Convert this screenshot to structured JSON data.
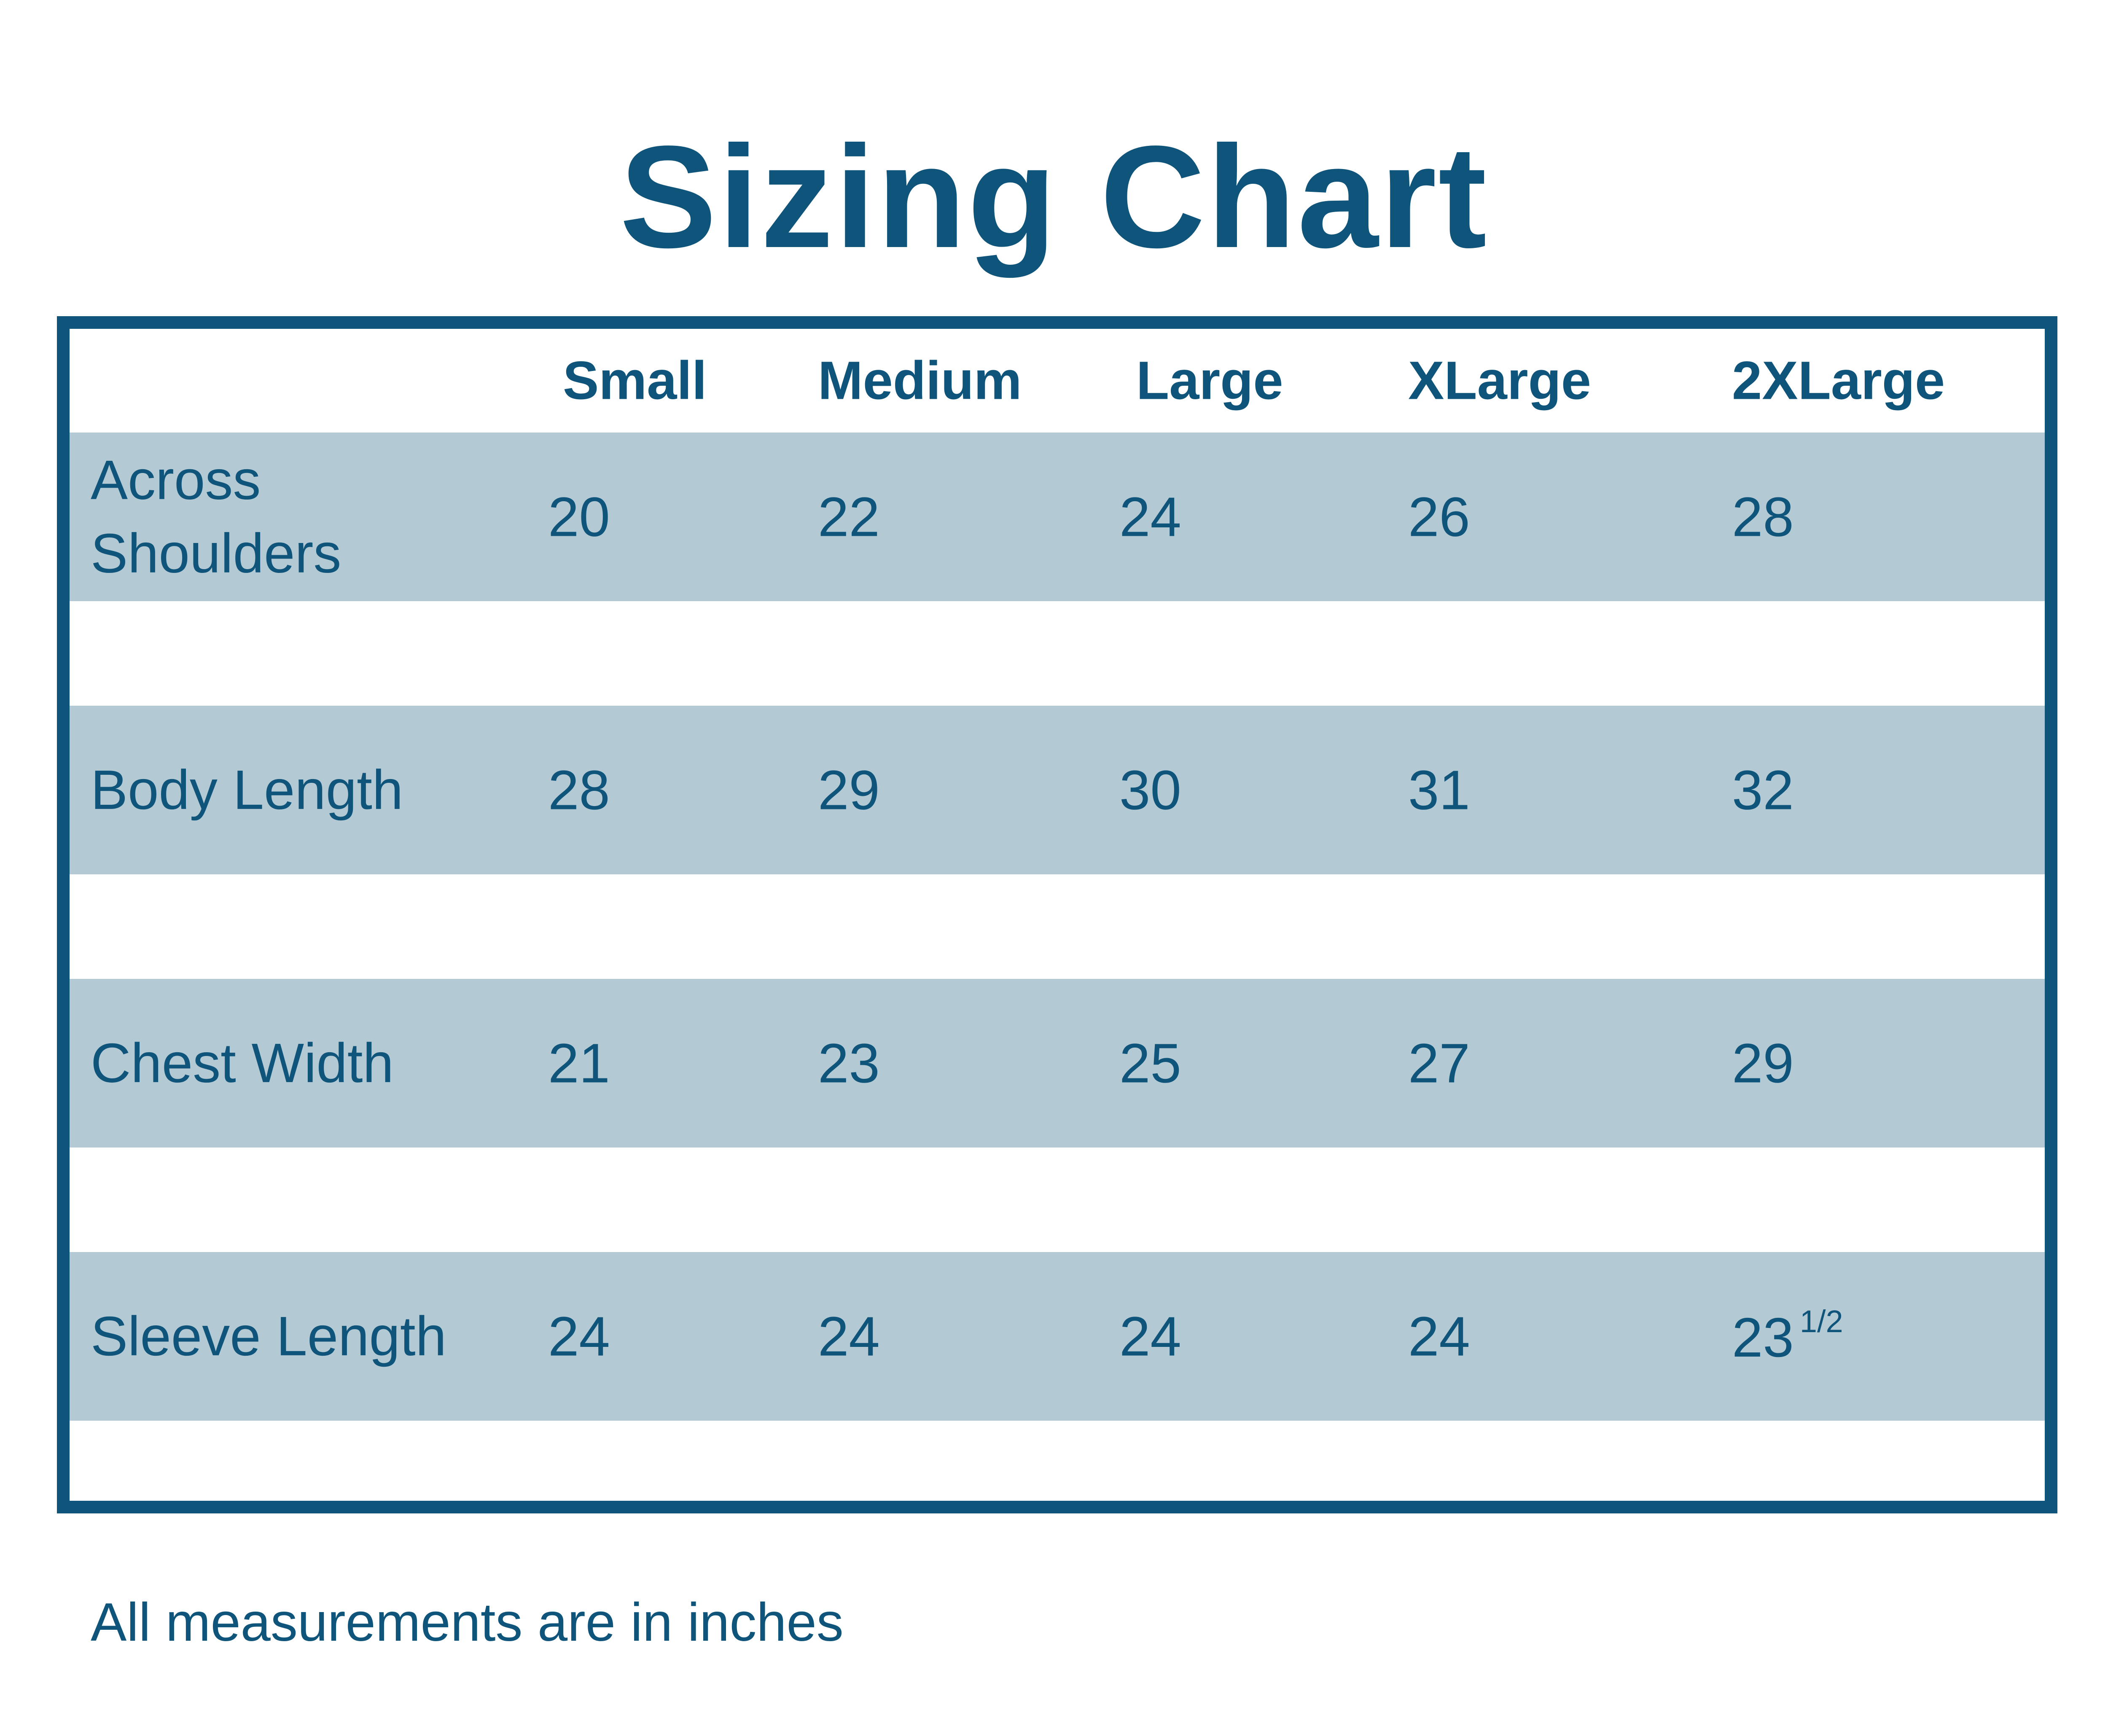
{
  "page": {
    "title": "Sizing Chart",
    "footnote": "All measurements are in inches"
  },
  "colors": {
    "accent": "#0F547A",
    "band": "#B3C9D4",
    "background": "#FFFFFF"
  },
  "table": {
    "columns": [
      "Small",
      "Medium",
      "Large",
      "XLarge",
      "2XLarge"
    ],
    "rows": [
      {
        "label": "Across Shoulders",
        "values": [
          "20",
          "22",
          "24",
          "26",
          "28"
        ]
      },
      {
        "label": "Body Length",
        "values": [
          "28",
          "29",
          "30",
          "31",
          "32"
        ]
      },
      {
        "label": "Chest Width",
        "values": [
          "21",
          "23",
          "25",
          "27",
          "29"
        ]
      },
      {
        "label": "Sleeve Length",
        "values": [
          "24",
          "24",
          "24",
          "24",
          "23"
        ],
        "value_5_superscript": "1/2"
      }
    ]
  },
  "chart_data": {
    "type": "table",
    "title": "Sizing Chart",
    "columns": [
      "Small",
      "Medium",
      "Large",
      "XLarge",
      "2XLarge"
    ],
    "rows": [
      "Across Shoulders",
      "Body Length",
      "Chest Width",
      "Sleeve Length"
    ],
    "values": [
      [
        20,
        22,
        24,
        26,
        28
      ],
      [
        28,
        29,
        30,
        31,
        32
      ],
      [
        21,
        23,
        25,
        27,
        29
      ],
      [
        24,
        24,
        24,
        24,
        23.5
      ]
    ],
    "note": "All measurements are in inches"
  }
}
